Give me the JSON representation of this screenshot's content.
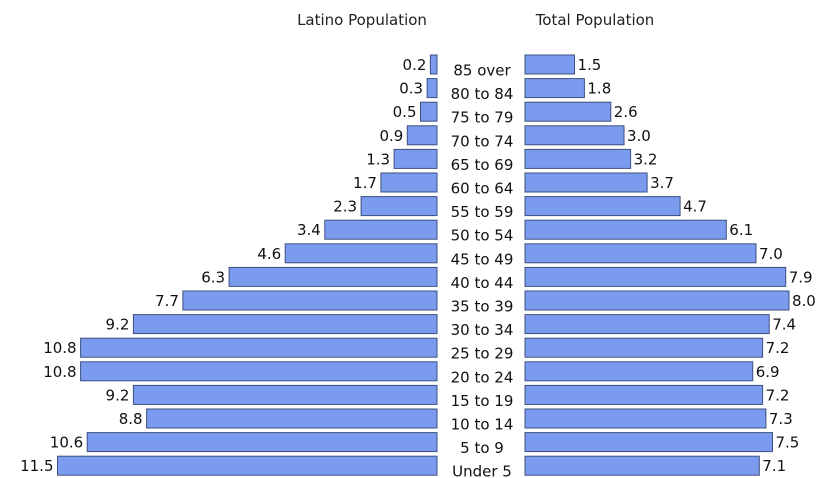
{
  "chart_data": {
    "type": "bar",
    "orientation": "horizontal",
    "layout": "population-pyramid",
    "categories": [
      "85 over",
      "80 to 84",
      "75 to 79",
      "70 to 74",
      "65 to 69",
      "60 to 64",
      "55 to 59",
      "50 to 54",
      "45 to 49",
      "40 to 44",
      "35 to 39",
      "30 to 34",
      "25 to 29",
      "20 to 24",
      "15 to 19",
      "10 to 14",
      "5 to 9",
      "Under 5"
    ],
    "series": [
      {
        "name": "Latino Population",
        "side": "left",
        "color": "#7b9bef",
        "values": [
          0.2,
          0.3,
          0.5,
          0.9,
          1.3,
          1.7,
          2.3,
          3.4,
          4.6,
          6.3,
          7.7,
          9.2,
          10.8,
          10.8,
          9.2,
          8.8,
          10.6,
          11.5
        ],
        "labels": [
          "0.2",
          "0.3",
          "0.5",
          "0.9",
          "1.3",
          "1.7",
          "2.3",
          "3.4",
          "4.6",
          "6.3",
          "7.7",
          "9.2",
          "10.8",
          "10.8",
          "9.2",
          "8.8",
          "10.6",
          "11.5"
        ]
      },
      {
        "name": "Total Population",
        "side": "right",
        "color": "#7b9bef",
        "values": [
          1.5,
          1.8,
          2.6,
          3.0,
          3.2,
          3.7,
          4.7,
          6.1,
          7.0,
          7.9,
          8.0,
          7.4,
          7.2,
          6.9,
          7.2,
          7.3,
          7.5,
          7.1
        ],
        "labels": [
          "1.5",
          "1.8",
          "2.6",
          "3.0",
          "3.2",
          "3.7",
          "4.7",
          "6.1",
          "7.0",
          "7.9",
          "8.0",
          "7.4",
          "7.2",
          "6.9",
          "7.2",
          "7.3",
          "7.5",
          "7.1"
        ]
      }
    ],
    "bar_border_color": "#3d4f80",
    "grid": false
  }
}
